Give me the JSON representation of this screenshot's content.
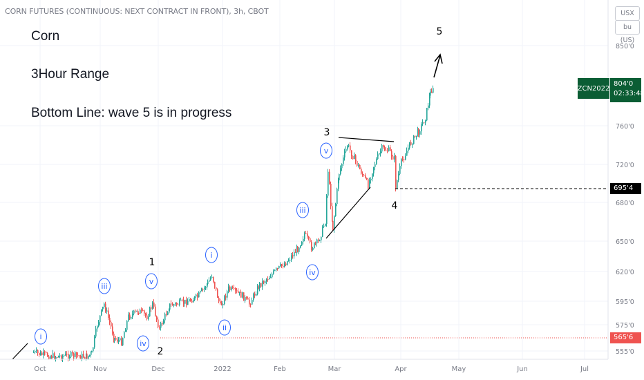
{
  "header": {
    "symbol_title": "CORN FUTURES (CONTINUOUS: NEXT CONTRACT IN FRONT), 3h, CBOT"
  },
  "annotations": {
    "title": "Corn",
    "timeframe": "3Hour Range",
    "bottom_line": "Bottom Line: wave 5 is in progress"
  },
  "price_scale": {
    "currency_label": "USX",
    "unit_label": "bu (US)",
    "tick_labels": [
      "850'0",
      "760'0",
      "720'0",
      "680'0",
      "650'0",
      "620'0",
      "595'0",
      "575'0",
      "555'0"
    ],
    "symbol_tag": "ZCN2022",
    "last_price": "804'0",
    "countdown": "02:33:48",
    "level_4_price": "695'4",
    "level_2_price": "565'6"
  },
  "time_axis": {
    "labels": [
      "Oct",
      "Nov",
      "Dec",
      "2022",
      "Feb",
      "Mar",
      "Apr",
      "May",
      "Jun",
      "Jul"
    ]
  },
  "wave_labels": {
    "minor": [
      "1",
      "2",
      "3",
      "4",
      "5"
    ],
    "minute": [
      "i",
      "iii",
      "v",
      "iv",
      "i",
      "ii",
      "iii",
      "iv",
      "v"
    ]
  },
  "colors": {
    "up_candle": "#26a69a",
    "down_candle": "#ef5350",
    "wave_circle": "#2962ff",
    "symbol_bg": "#0b5d34",
    "level_2_color": "#ef5350",
    "level_4_color": "#000000",
    "grid": "#f0f3fa"
  },
  "chart_data": {
    "type": "candlestick",
    "title": "Corn",
    "x_range": [
      "Sep 2021",
      "Jul 2022"
    ],
    "y_axis_ticks": [
      "850'0",
      "760'0",
      "720'0",
      "680'0",
      "650'0",
      "620'0",
      "595'0",
      "575'0",
      "555'0"
    ],
    "scale": "log",
    "horizontal_levels": [
      {
        "label": "695'4",
        "style": "dashed",
        "color": "#000000"
      },
      {
        "label": "565'6",
        "style": "dotted",
        "color": "#ef5350"
      }
    ],
    "last_price": "804'0",
    "series": [
      {
        "name": "ZCN2022",
        "values": [
          555,
          548,
          560,
          590,
          565,
          580,
          590,
          596,
          578,
          588,
          600,
          592,
          606,
          620,
          598,
          605,
          612,
          625,
          630,
          640,
          655,
          648,
          670,
          700,
          745,
          722,
          710,
          738,
          742,
          734,
          700,
          720,
          745,
          760,
          780,
          812,
          804
        ]
      }
    ]
  }
}
